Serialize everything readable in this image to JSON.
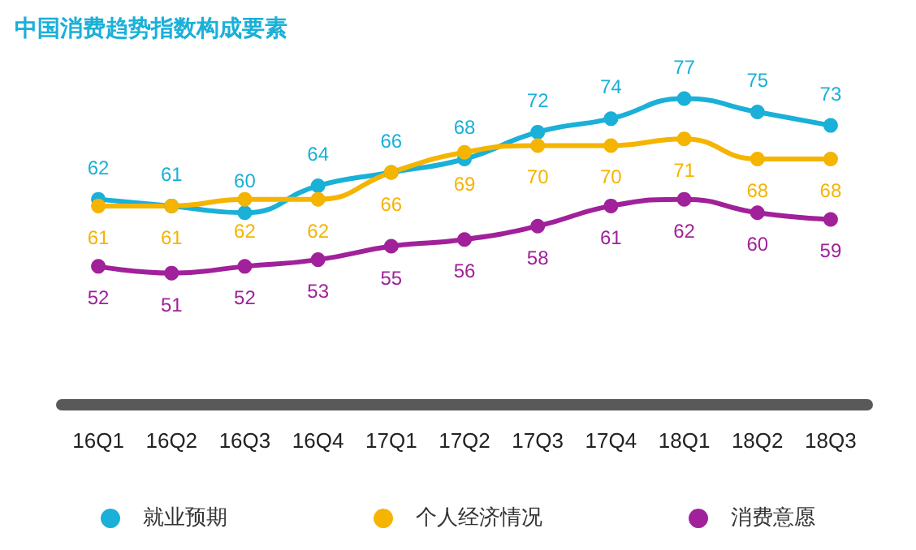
{
  "chart_data": {
    "type": "line",
    "title": "中国消费趋势指数构成要素",
    "categories": [
      "16Q1",
      "16Q2",
      "16Q3",
      "16Q4",
      "17Q1",
      "17Q2",
      "17Q3",
      "17Q4",
      "18Q1",
      "18Q2",
      "18Q3"
    ],
    "series": [
      {
        "name": "就业预期",
        "color": "#1ab0d8",
        "values": [
          62,
          61,
          60,
          64,
          66,
          68,
          72,
          74,
          77,
          75,
          73
        ]
      },
      {
        "name": "个人经济情况",
        "color": "#f5b400",
        "values": [
          61,
          61,
          62,
          62,
          66,
          69,
          70,
          70,
          71,
          68,
          68
        ]
      },
      {
        "name": "消费意愿",
        "color": "#a0219a",
        "values": [
          52,
          51,
          52,
          53,
          55,
          56,
          58,
          61,
          62,
          60,
          59
        ]
      }
    ],
    "data_labels": true,
    "marker": "circle",
    "line_style": "solid",
    "legend": "bottom",
    "grid": false,
    "tick_labels": "x"
  }
}
